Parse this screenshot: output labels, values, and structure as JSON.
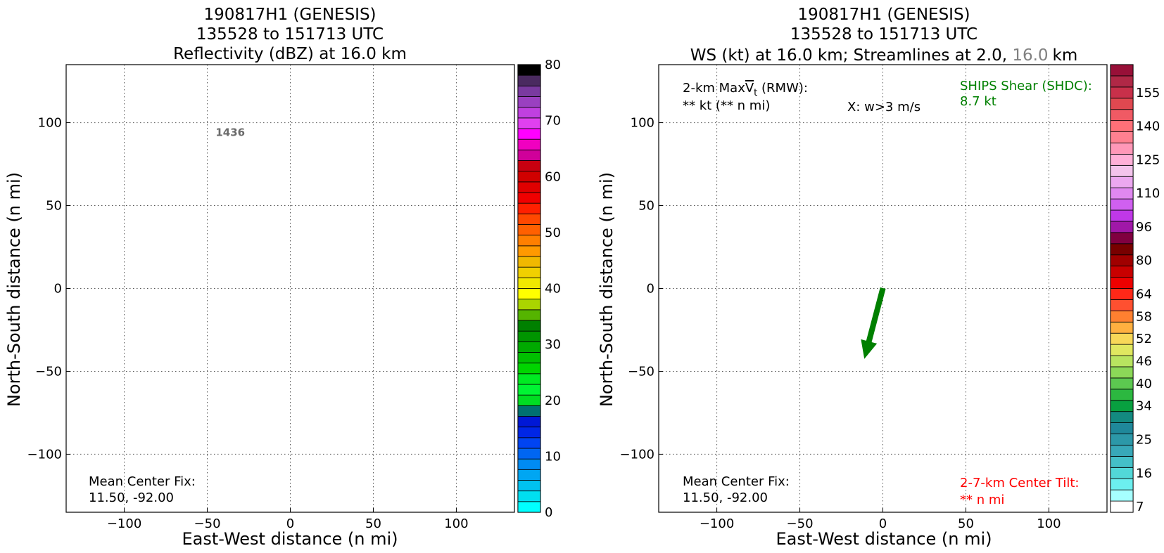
{
  "figure": {
    "background": "#ffffff"
  },
  "chart_data": [
    {
      "type": "heatmap",
      "panel": "reflectivity",
      "title_lines": [
        "190817H1 (GENESIS)",
        "135528 to 151713 UTC",
        "Reflectivity (dBZ) at 16.0 km"
      ],
      "xlabel": "East-West distance (n mi)",
      "ylabel": "North-South distance (n mi)",
      "xlim": [
        -135,
        135
      ],
      "ylim": [
        -135,
        135
      ],
      "x_ticks": [
        -100,
        -50,
        0,
        50,
        100
      ],
      "y_ticks": [
        -100,
        -50,
        0,
        50,
        100
      ],
      "x_tick_labels": [
        "−100",
        "−50",
        "0",
        "50",
        "100"
      ],
      "y_tick_labels": [
        "−100",
        "−50",
        "0",
        "50",
        "100"
      ],
      "grid": true,
      "grid_style": "dotted",
      "annotations": {
        "time_label": {
          "text": "1436",
          "x": -45,
          "y": 92,
          "color": "#6b6b6b"
        },
        "center_fix_title": "Mean Center Fix:",
        "center_fix_value": "11.50, -92.00"
      },
      "colorbar": {
        "min": 0,
        "max": 80,
        "tick_values": [
          0,
          10,
          20,
          30,
          40,
          50,
          60,
          70,
          80
        ],
        "tick_labels": [
          "0",
          "10",
          "20",
          "30",
          "40",
          "50",
          "60",
          "70",
          "80"
        ],
        "colors": [
          "#00ffff",
          "#00dff0",
          "#00c2f0",
          "#00a6f2",
          "#008bf2",
          "#0066f2",
          "#0044f2",
          "#0026e6",
          "#0018d6",
          "#007070",
          "#00dd22",
          "#00f433",
          "#00ea22",
          "#00d500",
          "#00c000",
          "#00aa00",
          "#009500",
          "#008000",
          "#55b400",
          "#aad400",
          "#ffff00",
          "#f0e800",
          "#f0d000",
          "#f0b800",
          "#ff9900",
          "#ff7f00",
          "#ff6000",
          "#ff4800",
          "#ff2000",
          "#f00000",
          "#e00000",
          "#d00000",
          "#c80010",
          "#d0009a",
          "#f000c0",
          "#ff00ff",
          "#e040f0",
          "#c040e0",
          "#9a40c0",
          "#7a3aa0",
          "#4a2a60",
          "#000000"
        ]
      }
    },
    {
      "type": "heatmap",
      "panel": "wind_speed",
      "title_lines": [
        "190817H1 (GENESIS)",
        "135528 to 151713 UTC"
      ],
      "title_line3_parts": [
        "WS (kt) at 16.0 km; Streamlines at 2.0, ",
        "16.0",
        "km"
      ],
      "title_line3_colors": [
        "#000000",
        "#808080",
        "#000000"
      ],
      "xlabel": "East-West distance (n mi)",
      "ylabel": "North-South distance (n mi)",
      "xlim": [
        -135,
        135
      ],
      "ylim": [
        -135,
        135
      ],
      "x_ticks": [
        -100,
        -50,
        0,
        50,
        100
      ],
      "y_ticks": [
        -100,
        -50,
        0,
        50,
        100
      ],
      "x_tick_labels": [
        "−100",
        "−50",
        "0",
        "50",
        "100"
      ],
      "y_tick_labels": [
        "−100",
        "−50",
        "0",
        "50",
        "100"
      ],
      "grid": true,
      "grid_style": "dotted",
      "annotations": {
        "max_vt_prefix": "2-km Max",
        "max_vt_symbol": "V",
        "max_vt_subscript": "t",
        "max_vt_suffix": " (RMW):",
        "max_vt_value": "** kt (** n mi)",
        "w_marker_note": "X: w>3 m/s",
        "ships_shear_title": "SHIPS Shear (SHDC):",
        "ships_shear_value": "8.7 kt",
        "ships_shear_color": "#008000",
        "center_fix_title": "Mean Center Fix:",
        "center_fix_value": "11.50, -92.00",
        "tilt_title": "2-7-km Center Tilt:",
        "tilt_value": "** n mi",
        "tilt_color": "#ff0000"
      },
      "shear_vector": {
        "from": [
          0,
          0
        ],
        "to": [
          -11,
          -42
        ],
        "color": "#008000"
      },
      "colorbar": {
        "tick_labels": [
          "7",
          "16",
          "25",
          "34",
          "40",
          "46",
          "52",
          "58",
          "64",
          "80",
          "96",
          "110",
          "125",
          "140",
          "155"
        ],
        "tick_bin_index": [
          0,
          3,
          6,
          9,
          11,
          13,
          15,
          17,
          19,
          22,
          25,
          28,
          31,
          34,
          37
        ],
        "colors": [
          "#ffffff",
          "#a6ffff",
          "#6cefef",
          "#52d8d8",
          "#44c0c8",
          "#38a8b8",
          "#2c98a8",
          "#1f889a",
          "#138a80",
          "#08a040",
          "#2cb840",
          "#5cc850",
          "#8cd858",
          "#b8e460",
          "#e0e860",
          "#f8d858",
          "#ffb040",
          "#ff8030",
          "#ff5030",
          "#ff2818",
          "#ee0000",
          "#c80000",
          "#a00000",
          "#780000",
          "#800040",
          "#a018a8",
          "#c038e8",
          "#d060f0",
          "#e088f0",
          "#eca8f0",
          "#f4c4ec",
          "#ffb0d8",
          "#ff98b8",
          "#ff8090",
          "#ff7078",
          "#f05a64",
          "#e04850",
          "#c8304a",
          "#b02846",
          "#981038"
        ]
      }
    }
  ]
}
